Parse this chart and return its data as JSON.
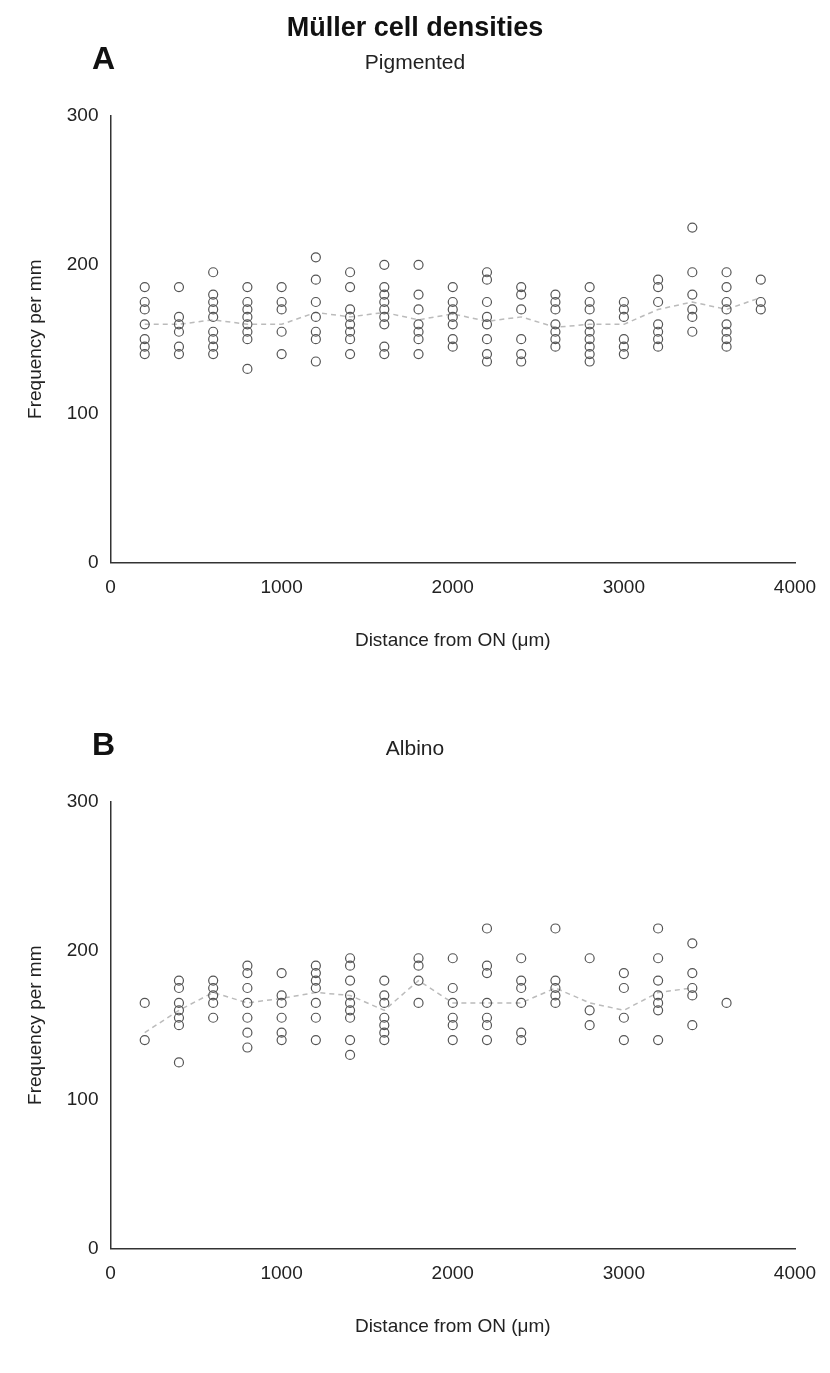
{
  "chart_data": [
    {
      "type": "scatter",
      "title": "Müller cell densities",
      "subtitle": "Pigmented",
      "annotations": [
        "A"
      ],
      "xlabel": "Distance from ON (μm)",
      "ylabel": "Frequency per mm",
      "xlim": [
        0,
        4000
      ],
      "xticks": [
        0,
        1000,
        2000,
        3000,
        4000
      ],
      "ylim": [
        0,
        300
      ],
      "yticks": [
        0,
        100,
        200,
        300
      ],
      "grid": false,
      "legend": false,
      "series": [
        {
          "type": "line",
          "marker": "none",
          "color": "#bbbbbb",
          "line_style": "dashed",
          "x": [
            200,
            400,
            600,
            800,
            1000,
            1200,
            1400,
            1600,
            1800,
            2000,
            2200,
            2400,
            2600,
            2800,
            3000,
            3200,
            3400,
            3600,
            3800
          ],
          "values": [
            160,
            160,
            163,
            160,
            160,
            168,
            165,
            168,
            163,
            167,
            162,
            165,
            158,
            160,
            160,
            170,
            175,
            170,
            178
          ]
        },
        {
          "marker": "circle",
          "color": "#555555",
          "x": [
            200,
            200,
            200,
            200,
            200,
            200,
            200,
            400,
            400,
            400,
            400,
            400,
            400,
            600,
            600,
            600,
            600,
            600,
            600,
            600,
            600,
            600,
            800,
            800,
            800,
            800,
            800,
            800,
            800,
            800,
            1000,
            1000,
            1000,
            1000,
            1000,
            1200,
            1200,
            1200,
            1200,
            1200,
            1200,
            1200,
            1400,
            1400,
            1400,
            1400,
            1400,
            1400,
            1400,
            1400,
            1600,
            1600,
            1600,
            1600,
            1600,
            1600,
            1600,
            1600,
            1600,
            1800,
            1800,
            1800,
            1800,
            1800,
            1800,
            1800,
            2000,
            2000,
            2000,
            2000,
            2000,
            2000,
            2000,
            2200,
            2200,
            2200,
            2200,
            2200,
            2200,
            2200,
            2200,
            2400,
            2400,
            2400,
            2400,
            2400,
            2400,
            2600,
            2600,
            2600,
            2600,
            2600,
            2600,
            2600,
            2800,
            2800,
            2800,
            2800,
            2800,
            2800,
            2800,
            2800,
            2800,
            3000,
            3000,
            3000,
            3000,
            3000,
            3000,
            3200,
            3200,
            3200,
            3200,
            3200,
            3200,
            3200,
            3400,
            3400,
            3400,
            3400,
            3400,
            3400,
            3600,
            3600,
            3600,
            3600,
            3600,
            3600,
            3600,
            3600,
            3800,
            3800,
            3800
          ],
          "values": [
            185,
            175,
            170,
            160,
            150,
            145,
            140,
            185,
            165,
            160,
            155,
            145,
            140,
            195,
            180,
            175,
            170,
            165,
            155,
            150,
            145,
            140,
            185,
            175,
            170,
            165,
            160,
            155,
            150,
            130,
            185,
            175,
            170,
            155,
            140,
            205,
            190,
            175,
            165,
            155,
            150,
            135,
            195,
            185,
            170,
            165,
            160,
            155,
            150,
            140,
            200,
            185,
            180,
            175,
            170,
            165,
            160,
            145,
            140,
            200,
            180,
            170,
            160,
            155,
            150,
            140,
            185,
            175,
            170,
            165,
            160,
            150,
            145,
            195,
            190,
            175,
            165,
            160,
            150,
            140,
            135,
            185,
            180,
            170,
            150,
            140,
            135,
            180,
            175,
            170,
            160,
            155,
            150,
            145,
            185,
            175,
            170,
            160,
            155,
            150,
            145,
            140,
            135,
            175,
            170,
            165,
            150,
            145,
            140,
            190,
            185,
            175,
            160,
            155,
            150,
            145,
            225,
            195,
            180,
            170,
            165,
            155,
            195,
            185,
            175,
            170,
            160,
            155,
            150,
            145,
            190,
            175,
            170
          ]
        }
      ]
    },
    {
      "type": "scatter",
      "title": "Albino",
      "annotations": [
        "B"
      ],
      "xlabel": "Distance from ON (μm)",
      "ylabel": "Frequency per mm",
      "xlim": [
        0,
        4000
      ],
      "xticks": [
        0,
        1000,
        2000,
        3000,
        4000
      ],
      "ylim": [
        0,
        300
      ],
      "yticks": [
        0,
        100,
        200,
        300
      ],
      "grid": false,
      "legend": false,
      "series": [
        {
          "type": "line",
          "marker": "none",
          "color": "#bbbbbb",
          "line_style": "dashed",
          "x": [
            200,
            400,
            600,
            800,
            1000,
            1200,
            1400,
            1600,
            1800,
            2000,
            2200,
            2400,
            2600,
            2800,
            3000,
            3200,
            3400
          ],
          "values": [
            145,
            160,
            172,
            165,
            168,
            172,
            170,
            160,
            180,
            165,
            165,
            165,
            175,
            165,
            160,
            172,
            175
          ]
        },
        {
          "marker": "circle",
          "color": "#555555",
          "x": [
            200,
            200,
            400,
            400,
            400,
            400,
            400,
            400,
            400,
            600,
            600,
            600,
            600,
            600,
            800,
            800,
            800,
            800,
            800,
            800,
            800,
            1000,
            1000,
            1000,
            1000,
            1000,
            1000,
            1200,
            1200,
            1200,
            1200,
            1200,
            1200,
            1200,
            1400,
            1400,
            1400,
            1400,
            1400,
            1400,
            1400,
            1400,
            1400,
            1600,
            1600,
            1600,
            1600,
            1600,
            1600,
            1600,
            1800,
            1800,
            1800,
            1800,
            2000,
            2000,
            2000,
            2000,
            2000,
            2000,
            2200,
            2200,
            2200,
            2200,
            2200,
            2200,
            2200,
            2400,
            2400,
            2400,
            2400,
            2400,
            2400,
            2600,
            2600,
            2600,
            2600,
            2600,
            2800,
            2800,
            2800,
            3000,
            3000,
            3000,
            3000,
            3200,
            3200,
            3200,
            3200,
            3200,
            3200,
            3200,
            3400,
            3400,
            3400,
            3400,
            3400,
            3600
          ],
          "values": [
            165,
            140,
            180,
            175,
            165,
            160,
            155,
            150,
            125,
            180,
            175,
            170,
            165,
            155,
            190,
            185,
            175,
            165,
            155,
            145,
            135,
            185,
            170,
            165,
            155,
            145,
            140,
            190,
            185,
            180,
            175,
            165,
            155,
            140,
            195,
            190,
            180,
            170,
            165,
            160,
            155,
            140,
            130,
            180,
            170,
            165,
            155,
            150,
            145,
            140,
            195,
            190,
            180,
            165,
            195,
            175,
            165,
            155,
            150,
            140,
            215,
            190,
            185,
            165,
            155,
            150,
            140,
            195,
            180,
            175,
            165,
            145,
            140,
            215,
            180,
            175,
            170,
            165,
            195,
            160,
            150,
            185,
            175,
            155,
            140,
            215,
            195,
            180,
            170,
            165,
            160,
            140,
            205,
            185,
            175,
            170,
            150,
            165
          ]
        }
      ]
    }
  ]
}
